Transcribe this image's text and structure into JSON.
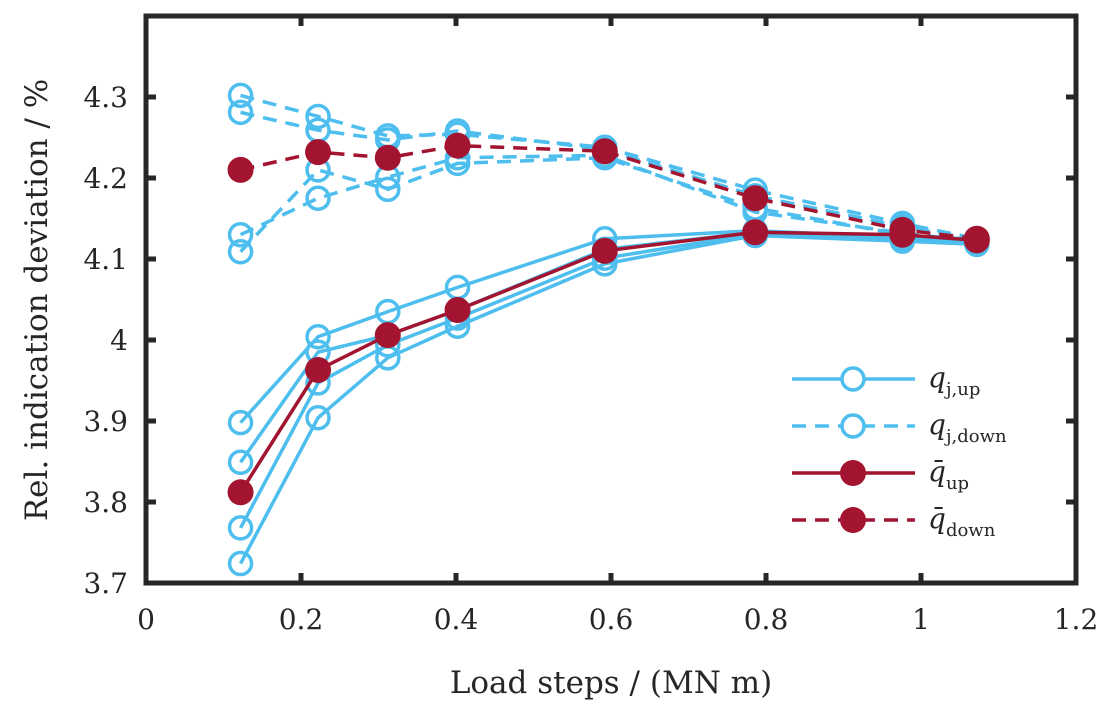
{
  "chart_data": {
    "type": "line",
    "title": "",
    "xlabel": "Load steps / (MN m)",
    "ylabel": "Rel. indication deviation / %",
    "xlim": [
      0,
      1.2
    ],
    "ylim": [
      3.7,
      4.4
    ],
    "xticks": [
      0,
      0.2,
      0.4,
      0.6,
      0.8,
      1,
      1.2
    ],
    "xtick_labels": [
      "0",
      "0.2",
      "0.4",
      "0.6",
      "0.8",
      "1",
      "1.2"
    ],
    "yticks": [
      3.7,
      3.8,
      3.9,
      4.0,
      4.1,
      4.2,
      4.3
    ],
    "ytick_labels": [
      "3.7",
      "3.8",
      "3.9",
      "4",
      "4.1",
      "4.2",
      "4.3"
    ],
    "grid": false,
    "legend_position": "right-middle",
    "x": [
      0.122,
      0.222,
      0.312,
      0.402,
      0.592,
      0.786,
      0.976,
      1.072
    ],
    "colors": {
      "individual": "#4DBEEE",
      "mean": "#A2142F",
      "axis": "#262626"
    },
    "series": [
      {
        "name": "q_j,up run 1",
        "group": "q_j_up",
        "style": "solid",
        "marker": "open",
        "values": [
          3.898,
          4.004,
          4.035,
          4.065,
          4.125,
          4.135,
          4.127,
          4.125
        ]
      },
      {
        "name": "q_j,up run 2",
        "group": "q_j_up",
        "style": "solid",
        "marker": "open",
        "values": [
          3.849,
          3.985,
          4.006,
          4.037,
          4.112,
          4.133,
          4.128,
          4.124
        ]
      },
      {
        "name": "q_j,up run 3",
        "group": "q_j_up",
        "style": "solid",
        "marker": "open",
        "values": [
          3.768,
          3.947,
          3.994,
          4.027,
          4.101,
          4.131,
          4.125,
          4.122
        ]
      },
      {
        "name": "q_j,up run 4",
        "group": "q_j_up",
        "style": "solid",
        "marker": "open",
        "values": [
          3.724,
          3.904,
          3.978,
          4.017,
          4.094,
          4.129,
          4.122,
          4.118
        ]
      },
      {
        "name": "q_j,down run 1",
        "group": "q_j_down",
        "style": "dashed",
        "marker": "open",
        "values": [
          4.302,
          4.276,
          4.252,
          4.254,
          4.238,
          4.185,
          4.144,
          4.125
        ]
      },
      {
        "name": "q_j,down run 2",
        "group": "q_j_down",
        "style": "dashed",
        "marker": "open",
        "values": [
          4.281,
          4.259,
          4.247,
          4.258,
          4.235,
          4.178,
          4.14,
          4.124
        ]
      },
      {
        "name": "q_j,down run 3",
        "group": "q_j_down",
        "style": "dashed",
        "marker": "open",
        "values": [
          4.13,
          4.175,
          4.201,
          4.225,
          4.228,
          4.158,
          4.132,
          4.122
        ]
      },
      {
        "name": "q_j,down run 4",
        "group": "q_j_down",
        "style": "dashed",
        "marker": "open",
        "values": [
          4.109,
          4.21,
          4.186,
          4.218,
          4.225,
          4.163,
          4.13,
          4.12
        ]
      },
      {
        "name": "q̄_up",
        "group": "q_bar_up",
        "style": "solid",
        "marker": "filled",
        "values": [
          3.812,
          3.963,
          4.006,
          4.037,
          4.11,
          4.133,
          4.13,
          4.123
        ]
      },
      {
        "name": "q̄_down",
        "group": "q_bar_down",
        "style": "dashed",
        "marker": "filled",
        "values": [
          4.21,
          4.232,
          4.225,
          4.24,
          4.233,
          4.175,
          4.136,
          4.125
        ]
      }
    ],
    "legend": [
      {
        "symbol": "q",
        "sub": "j,up",
        "bar": false,
        "style": "solid",
        "marker": "open",
        "color": "#4DBEEE"
      },
      {
        "symbol": "q",
        "sub": "j,down",
        "bar": false,
        "style": "dashed",
        "marker": "open",
        "color": "#4DBEEE"
      },
      {
        "symbol": "q̄",
        "sub": "up",
        "bar": true,
        "style": "solid",
        "marker": "filled",
        "color": "#A2142F"
      },
      {
        "symbol": "q̄",
        "sub": "down",
        "bar": true,
        "style": "dashed",
        "marker": "filled",
        "color": "#A2142F"
      }
    ]
  }
}
